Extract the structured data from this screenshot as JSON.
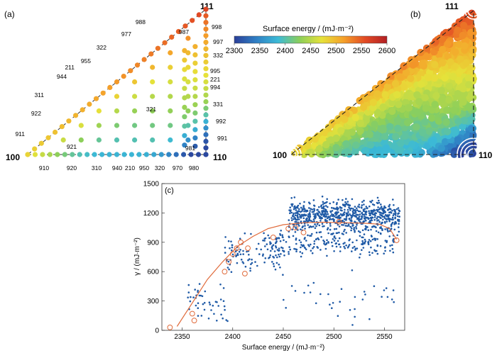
{
  "figure": {
    "panel_a": "(a)",
    "panel_b": "(b)",
    "panel_c": "(c)",
    "colorbar": {
      "title": "Surface energy / (mJ·m⁻²)",
      "ticks": [
        "2300",
        "2350",
        "2400",
        "2450",
        "2500",
        "2550",
        "2600"
      ],
      "stops": [
        "#2a3f99",
        "#2f7fc4",
        "#3cbad6",
        "#8ccf5a",
        "#e6e23a",
        "#f5a12a",
        "#e24a24",
        "#b21f24"
      ]
    },
    "triangle_corners": {
      "a_100": "100",
      "a_110": "110",
      "a_111": "111",
      "b_100": "100",
      "b_110": "110",
      "b_111": "111"
    }
  },
  "chart_data": [
    {
      "panel": "(a)",
      "type": "scatter",
      "description_labels_edge_100_110": [
        "910",
        "920",
        "310",
        "940",
        "210",
        "950",
        "320",
        "970",
        "980"
      ],
      "description_labels_edge_100_111": [
        "911",
        "922",
        "311",
        "944",
        "211",
        "955",
        "322",
        "977",
        "988"
      ],
      "description_labels_edge_110_111": [
        "998",
        "997",
        "332",
        "995",
        "221",
        "994",
        "331",
        "992",
        "991"
      ],
      "interior_labels": [
        "987",
        "321",
        "921",
        "981"
      ],
      "color_scale_range": [
        2300,
        2600
      ]
    },
    {
      "panel": "(b)",
      "type": "heatmap",
      "color_scale_range": [
        2300,
        2600
      ],
      "regions": [
        {
          "near": "100",
          "level": "orange/yellow"
        },
        {
          "near": "110",
          "level": "blue/cyan"
        },
        {
          "near": "111",
          "level": "red"
        }
      ]
    },
    {
      "panel": "(c)",
      "type": "scatter",
      "xlabel": "Surface energy / (mJ·m⁻²)",
      "ylabel": "γ / (mJ·m⁻²)",
      "xlim": [
        2330,
        2570
      ],
      "ylim": [
        0,
        1500
      ],
      "xticks": [
        2350,
        2400,
        2450,
        2500,
        2550
      ],
      "yticks": [
        0,
        300,
        600,
        900,
        1200,
        1500
      ],
      "series": [
        {
          "marker": "open-circle",
          "color": "#e06a3a",
          "x": [
            2338,
            2360,
            2362,
            2392,
            2396,
            2400,
            2404,
            2408,
            2412,
            2415,
            2440,
            2455,
            2462,
            2470,
            2505,
            2562
          ],
          "y": [
            30,
            170,
            100,
            600,
            700,
            780,
            840,
            900,
            580,
            840,
            950,
            1040,
            1050,
            1000,
            1110,
            920
          ]
        }
      ],
      "fit_curve": {
        "color": "#e06a3a",
        "x": [
          2345,
          2360,
          2375,
          2390,
          2405,
          2420,
          2435,
          2450,
          2470,
          2490,
          2510,
          2530,
          2545,
          2555,
          2562
        ],
        "y": [
          40,
          280,
          520,
          700,
          860,
          960,
          1040,
          1080,
          1100,
          1105,
          1100,
          1095,
          1085,
          1040,
          930
        ]
      },
      "dense_cloud": {
        "color": "#1f5aa6",
        "clusters": [
          {
            "x_range": [
              2455,
              2565
            ],
            "y_range": [
              950,
              1400
            ],
            "n": 700
          },
          {
            "x_range": [
              2430,
              2560
            ],
            "y_range": [
              700,
              1100
            ],
            "n": 220
          },
          {
            "x_range": [
              2390,
              2450
            ],
            "y_range": [
              500,
              1050
            ],
            "n": 90
          },
          {
            "x_range": [
              2355,
              2395
            ],
            "y_range": [
              0,
              550
            ],
            "n": 45
          },
          {
            "x_range": [
              2450,
              2560
            ],
            "y_range": [
              0,
              650
            ],
            "n": 35
          }
        ]
      }
    }
  ]
}
